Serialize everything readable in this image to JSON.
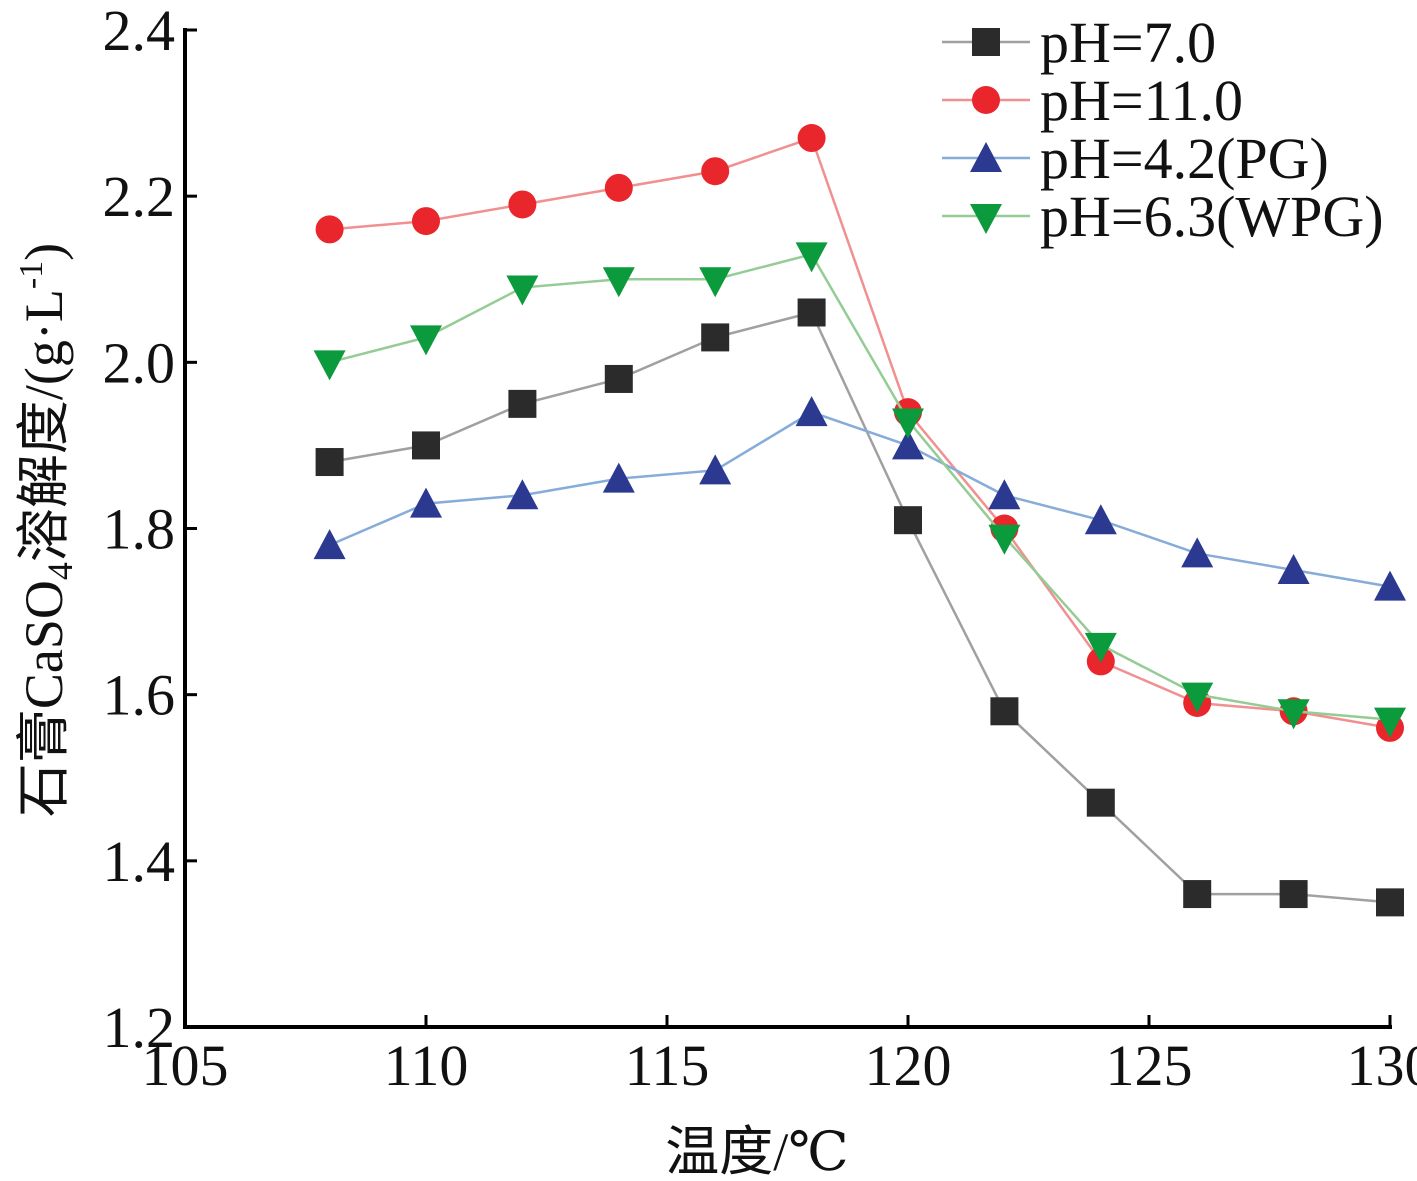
{
  "chart_data": {
    "type": "line",
    "title": "",
    "xlabel": "温度/℃",
    "ylabel": {
      "main": "石膏CaSO",
      "sub": "4",
      "mid": "溶解度/(g·L",
      "sup": "-1",
      "end": ")"
    },
    "xlim": [
      105,
      130
    ],
    "ylim": [
      1.2,
      2.4
    ],
    "xticks": [
      105,
      110,
      115,
      120,
      125,
      130
    ],
    "yticks": [
      "1.2",
      "1.4",
      "1.6",
      "1.8",
      "2.0",
      "2.2",
      "2.4"
    ],
    "grid": false,
    "legend_position": "top-right",
    "x": [
      108,
      110,
      112,
      114,
      116,
      118,
      120,
      122,
      124,
      126,
      128,
      130
    ],
    "series": [
      {
        "name": "pH=7.0",
        "marker": "square",
        "color": "#2b2b2b",
        "line_color": "#a0a0a0",
        "values": [
          1.88,
          1.9,
          1.95,
          1.98,
          2.03,
          2.06,
          1.81,
          1.58,
          1.47,
          1.36,
          1.36,
          1.35
        ]
      },
      {
        "name": "pH=11.0",
        "marker": "circle",
        "color": "#e8262b",
        "line_color": "#f19090",
        "values": [
          2.16,
          2.17,
          2.19,
          2.21,
          2.23,
          2.27,
          1.94,
          1.8,
          1.64,
          1.59,
          1.58,
          1.56
        ]
      },
      {
        "name": "pH=4.2(PG)",
        "marker": "triangle-up",
        "color": "#2b3990",
        "line_color": "#86acd9",
        "values": [
          1.78,
          1.83,
          1.84,
          1.86,
          1.87,
          1.94,
          1.9,
          1.84,
          1.81,
          1.77,
          1.75,
          1.73
        ]
      },
      {
        "name": "pH=6.3(WPG)",
        "marker": "triangle-down",
        "color": "#0b9a3c",
        "line_color": "#95cc95",
        "values": [
          2.0,
          2.03,
          2.09,
          2.1,
          2.1,
          2.13,
          1.93,
          1.79,
          1.66,
          1.6,
          1.58,
          1.57
        ]
      }
    ]
  }
}
